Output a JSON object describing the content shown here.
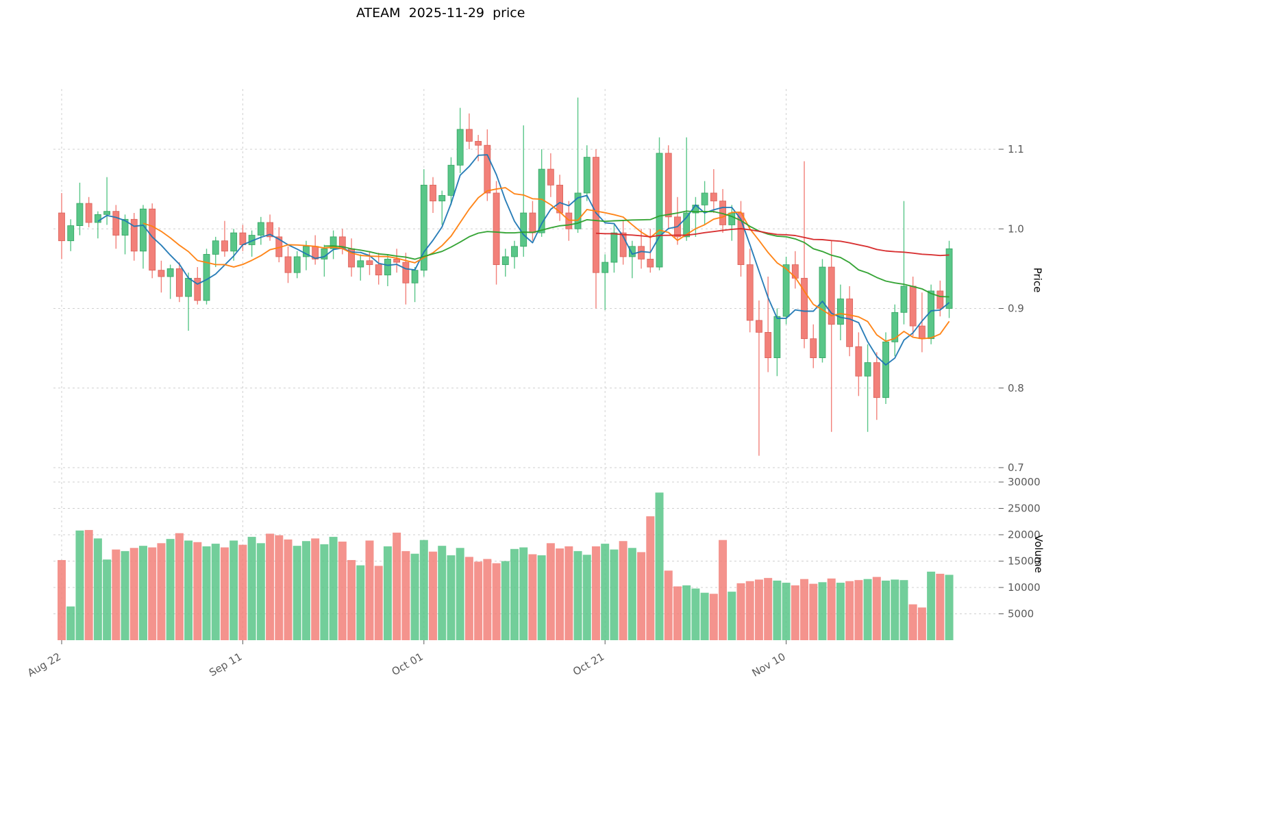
{
  "title": "ATEAM  2025-11-29  price",
  "axes": {
    "price_label": "Price",
    "volume_label": "Volume",
    "price_ticks": [
      0.7,
      0.8,
      0.9,
      1.0,
      1.1
    ],
    "volume_ticks": [
      5000,
      10000,
      15000,
      20000,
      25000,
      30000
    ]
  },
  "colors": {
    "up": "#59c688",
    "up_edge": "#33a360",
    "down": "#f28079",
    "down_edge": "#d95f57",
    "grid": "#cfcfcf",
    "tick_text": "#595959",
    "ma": [
      "#1f77b4",
      "#ff7f0e",
      "#2ca02c",
      "#d62728"
    ]
  },
  "chart_data": {
    "type": "candlestick",
    "title": "ATEAM  2025-11-29  price",
    "xlabel": "",
    "ylabel": "Price",
    "y2label": "Volume",
    "ylim_price": [
      0.66,
      1.18
    ],
    "ylim_volume": [
      0,
      30000
    ],
    "grid": true,
    "x_tick_labels": [
      "Aug 22",
      "Sep 11",
      "Oct 01",
      "Oct 21",
      "Nov 10"
    ],
    "x_tick_indices": [
      0,
      20,
      40,
      60,
      80
    ],
    "moving_average_windows": [
      5,
      10,
      30,
      60
    ],
    "columns": [
      "open",
      "high",
      "low",
      "close",
      "volume"
    ],
    "ohlcv": [
      [
        1.02,
        1.045,
        0.962,
        0.985,
        15200
      ],
      [
        0.985,
        1.012,
        0.972,
        1.004,
        6400
      ],
      [
        1.004,
        1.058,
        0.992,
        1.032,
        20800
      ],
      [
        1.032,
        1.04,
        1.002,
        1.008,
        20900
      ],
      [
        1.008,
        1.022,
        0.988,
        1.018,
        19300
      ],
      [
        1.018,
        1.065,
        1.005,
        1.022,
        15300
      ],
      [
        1.022,
        1.03,
        0.975,
        0.992,
        17200
      ],
      [
        0.992,
        1.018,
        0.968,
        1.012,
        16900
      ],
      [
        1.012,
        1.02,
        0.96,
        0.972,
        17500
      ],
      [
        0.972,
        1.03,
        0.95,
        1.025,
        17900
      ],
      [
        1.025,
        1.032,
        0.938,
        0.948,
        17600
      ],
      [
        0.948,
        0.96,
        0.92,
        0.94,
        18400
      ],
      [
        0.94,
        0.955,
        0.912,
        0.95,
        19200
      ],
      [
        0.95,
        0.958,
        0.908,
        0.915,
        20300
      ],
      [
        0.915,
        0.945,
        0.872,
        0.938,
        18900
      ],
      [
        0.938,
        0.952,
        0.905,
        0.91,
        18600
      ],
      [
        0.91,
        0.975,
        0.905,
        0.968,
        17800
      ],
      [
        0.968,
        0.99,
        0.952,
        0.985,
        18300
      ],
      [
        0.985,
        1.01,
        0.965,
        0.972,
        17600
      ],
      [
        0.972,
        1.0,
        0.96,
        0.995,
        18900
      ],
      [
        0.995,
        1.005,
        0.972,
        0.98,
        18100
      ],
      [
        0.98,
        0.998,
        0.965,
        0.992,
        19600
      ],
      [
        0.992,
        1.015,
        0.98,
        1.008,
        18400
      ],
      [
        1.008,
        1.018,
        0.985,
        0.99,
        20200
      ],
      [
        0.99,
        1.002,
        0.958,
        0.965,
        19900
      ],
      [
        0.965,
        0.978,
        0.932,
        0.945,
        19100
      ],
      [
        0.945,
        0.972,
        0.938,
        0.965,
        17900
      ],
      [
        0.965,
        0.985,
        0.948,
        0.978,
        18800
      ],
      [
        0.978,
        0.992,
        0.955,
        0.962,
        19300
      ],
      [
        0.962,
        0.98,
        0.94,
        0.975,
        18200
      ],
      [
        0.975,
        0.998,
        0.962,
        0.99,
        19600
      ],
      [
        0.99,
        1.0,
        0.968,
        0.975,
        18700
      ],
      [
        0.975,
        0.988,
        0.94,
        0.952,
        15200
      ],
      [
        0.952,
        0.968,
        0.935,
        0.96,
        14200
      ],
      [
        0.96,
        0.972,
        0.942,
        0.955,
        18900
      ],
      [
        0.955,
        0.97,
        0.93,
        0.942,
        14100
      ],
      [
        0.942,
        0.968,
        0.928,
        0.962,
        17800
      ],
      [
        0.962,
        0.975,
        0.945,
        0.958,
        20400
      ],
      [
        0.958,
        0.97,
        0.905,
        0.932,
        16900
      ],
      [
        0.932,
        0.952,
        0.908,
        0.948,
        16400
      ],
      [
        0.948,
        1.075,
        0.94,
        1.055,
        19000
      ],
      [
        1.055,
        1.065,
        1.02,
        1.035,
        16800
      ],
      [
        1.035,
        1.048,
        1.005,
        1.042,
        17900
      ],
      [
        1.042,
        1.09,
        1.03,
        1.08,
        16100
      ],
      [
        1.08,
        1.152,
        1.07,
        1.125,
        17500
      ],
      [
        1.125,
        1.145,
        1.1,
        1.11,
        15800
      ],
      [
        1.11,
        1.118,
        1.085,
        1.105,
        14900
      ],
      [
        1.105,
        1.125,
        1.035,
        1.045,
        15400
      ],
      [
        1.045,
        1.06,
        0.93,
        0.955,
        14600
      ],
      [
        0.955,
        0.975,
        0.94,
        0.965,
        15000
      ],
      [
        0.965,
        0.985,
        0.95,
        0.978,
        17300
      ],
      [
        0.978,
        1.13,
        0.965,
        1.02,
        17600
      ],
      [
        1.02,
        1.035,
        0.985,
        0.995,
        16300
      ],
      [
        0.995,
        1.1,
        0.99,
        1.075,
        16100
      ],
      [
        1.075,
        1.095,
        1.04,
        1.055,
        18400
      ],
      [
        1.055,
        1.068,
        1.01,
        1.02,
        17400
      ],
      [
        1.02,
        1.035,
        0.985,
        1.0,
        17800
      ],
      [
        1.0,
        1.165,
        0.995,
        1.045,
        16900
      ],
      [
        1.045,
        1.105,
        1.035,
        1.09,
        16200
      ],
      [
        1.09,
        1.1,
        0.9,
        0.945,
        17800
      ],
      [
        0.945,
        0.968,
        0.898,
        0.958,
        18300
      ],
      [
        0.958,
        1.005,
        0.945,
        0.995,
        17200
      ],
      [
        0.995,
        1.01,
        0.955,
        0.965,
        18800
      ],
      [
        0.965,
        0.985,
        0.938,
        0.978,
        17500
      ],
      [
        0.978,
        1.0,
        0.95,
        0.962,
        16700
      ],
      [
        0.962,
        1.0,
        0.945,
        0.952,
        23500
      ],
      [
        0.952,
        1.115,
        0.948,
        1.095,
        28000
      ],
      [
        1.095,
        1.105,
        1.0,
        1.015,
        13200
      ],
      [
        1.015,
        1.04,
        0.98,
        0.99,
        10200
      ],
      [
        0.99,
        1.115,
        0.985,
        1.02,
        10400
      ],
      [
        1.02,
        1.04,
        0.99,
        1.03,
        9800
      ],
      [
        1.03,
        1.06,
        1.005,
        1.045,
        9000
      ],
      [
        1.045,
        1.075,
        1.02,
        1.035,
        8800
      ],
      [
        1.035,
        1.05,
        0.995,
        1.005,
        19000
      ],
      [
        1.005,
        1.03,
        0.985,
        1.02,
        9200
      ],
      [
        1.02,
        1.035,
        0.94,
        0.955,
        10800
      ],
      [
        0.955,
        0.975,
        0.87,
        0.885,
        11200
      ],
      [
        0.885,
        0.91,
        0.715,
        0.87,
        11500
      ],
      [
        0.87,
        0.94,
        0.82,
        0.838,
        11800
      ],
      [
        0.838,
        0.9,
        0.815,
        0.89,
        11300
      ],
      [
        0.89,
        0.965,
        0.88,
        0.955,
        10900
      ],
      [
        0.955,
        0.972,
        0.925,
        0.938,
        10400
      ],
      [
        0.938,
        1.085,
        0.85,
        0.862,
        11600
      ],
      [
        0.862,
        0.88,
        0.825,
        0.838,
        10700
      ],
      [
        0.838,
        0.962,
        0.832,
        0.952,
        11000
      ],
      [
        0.952,
        0.985,
        0.745,
        0.88,
        11700
      ],
      [
        0.88,
        0.93,
        0.86,
        0.912,
        10900
      ],
      [
        0.912,
        0.928,
        0.84,
        0.852,
        11200
      ],
      [
        0.852,
        0.87,
        0.79,
        0.815,
        11400
      ],
      [
        0.815,
        0.855,
        0.745,
        0.832,
        11600
      ],
      [
        0.832,
        0.845,
        0.76,
        0.788,
        12000
      ],
      [
        0.788,
        0.87,
        0.78,
        0.858,
        11300
      ],
      [
        0.858,
        0.905,
        0.84,
        0.895,
        11500
      ],
      [
        0.895,
        1.035,
        0.88,
        0.928,
        11400
      ],
      [
        0.928,
        0.94,
        0.865,
        0.878,
        6800
      ],
      [
        0.878,
        0.92,
        0.845,
        0.862,
        6200
      ],
      [
        0.862,
        0.93,
        0.855,
        0.922,
        13000
      ],
      [
        0.922,
        0.935,
        0.89,
        0.9,
        12600
      ],
      [
        0.9,
        0.985,
        0.888,
        0.975,
        12400
      ]
    ]
  }
}
